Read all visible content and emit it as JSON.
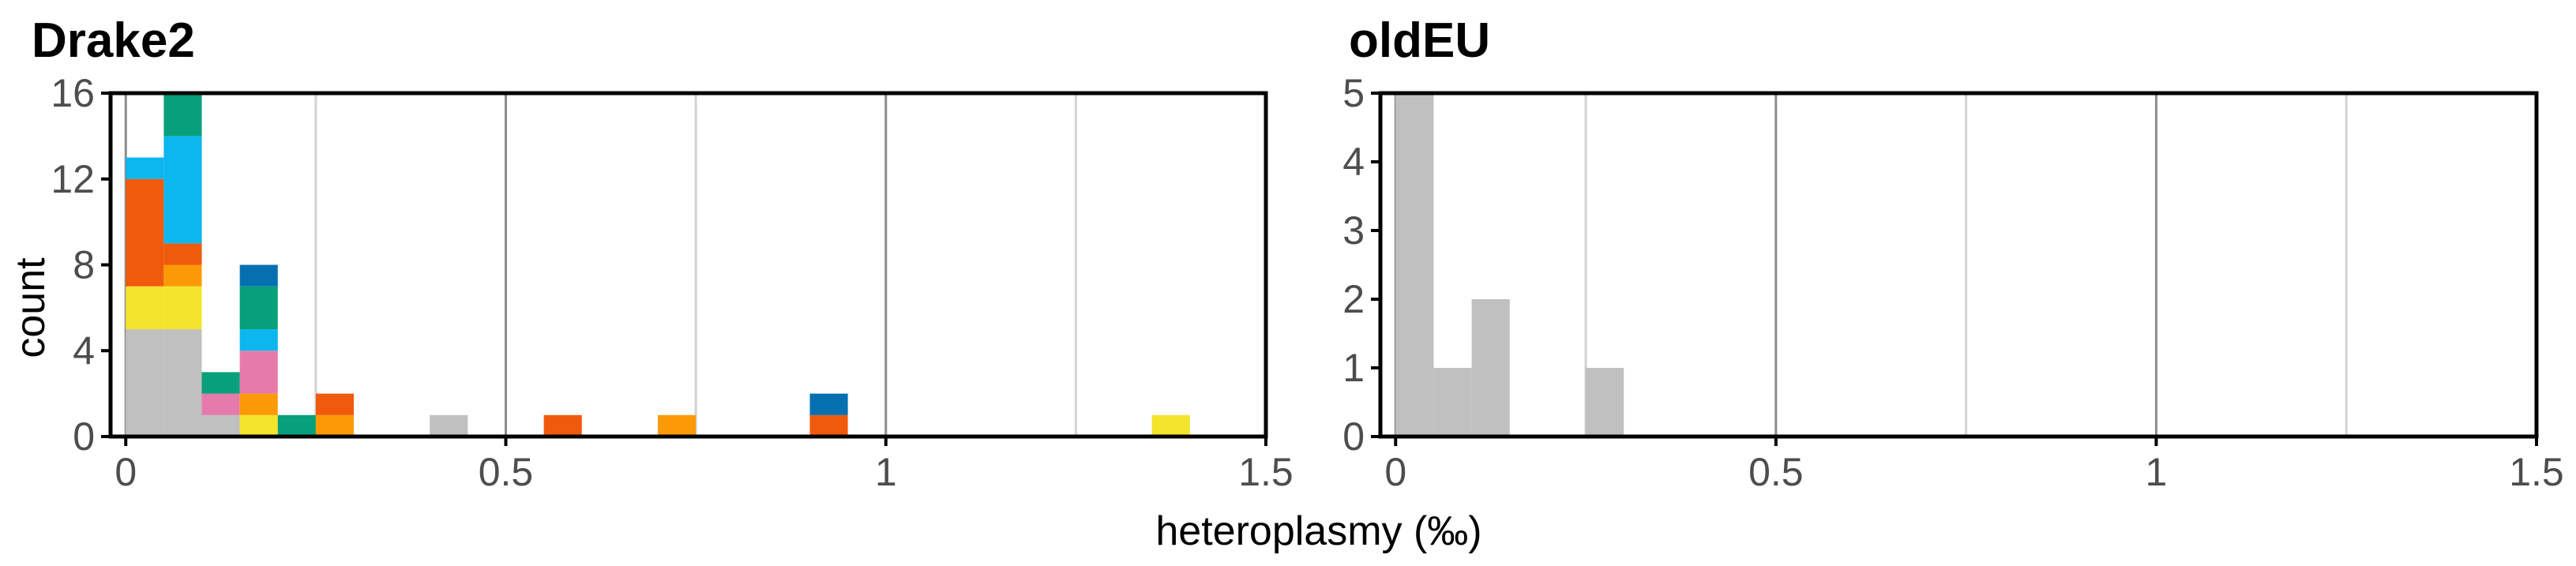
{
  "xlabel": "heteroplasmy (‰)",
  "ylabel": "count",
  "colors": {
    "grey": "#c0c0c0",
    "yellow": "#f4e42c",
    "orange": "#fb9a06",
    "vermillion": "#f05a0c",
    "pink": "#e67bab",
    "green": "#06a07a",
    "skyblue": "#0cb6ee",
    "blue": "#0570b0",
    "grid_major": "#8c8c8c",
    "grid_minor": "#d2d2d2"
  },
  "chart_data": [
    {
      "type": "bar",
      "stacked": true,
      "title": "Drake2",
      "xlabel": "heteroplasmy (‰)",
      "ylabel": "count",
      "xlim": [
        -0.02,
        1.5
      ],
      "ylim": [
        0,
        16
      ],
      "xticks": [
        "0",
        "0.5",
        "1",
        "1.5"
      ],
      "xtick_values": [
        0,
        0.5,
        1,
        1.5
      ],
      "yticks": [
        "0",
        "4",
        "8",
        "12",
        "16"
      ],
      "ytick_values": [
        0,
        4,
        8,
        12,
        16
      ],
      "bin_width": 0.05,
      "bins": [
        {
          "x": 0.0,
          "stack": [
            {
              "c": "grey",
              "n": 5
            },
            {
              "c": "yellow",
              "n": 2
            },
            {
              "c": "vermillion",
              "n": 5
            },
            {
              "c": "skyblue",
              "n": 1
            }
          ]
        },
        {
          "x": 0.05,
          "stack": [
            {
              "c": "grey",
              "n": 5
            },
            {
              "c": "yellow",
              "n": 2
            },
            {
              "c": "orange",
              "n": 1
            },
            {
              "c": "vermillion",
              "n": 1
            },
            {
              "c": "skyblue",
              "n": 5
            },
            {
              "c": "green",
              "n": 2
            }
          ]
        },
        {
          "x": 0.1,
          "stack": [
            {
              "c": "grey",
              "n": 1
            },
            {
              "c": "pink",
              "n": 1
            },
            {
              "c": "green",
              "n": 1
            }
          ]
        },
        {
          "x": 0.15,
          "stack": [
            {
              "c": "yellow",
              "n": 1
            },
            {
              "c": "orange",
              "n": 1
            },
            {
              "c": "pink",
              "n": 2
            },
            {
              "c": "skyblue",
              "n": 1
            },
            {
              "c": "green",
              "n": 2
            },
            {
              "c": "blue",
              "n": 1
            }
          ]
        },
        {
          "x": 0.2,
          "stack": [
            {
              "c": "green",
              "n": 1
            }
          ]
        },
        {
          "x": 0.25,
          "stack": [
            {
              "c": "orange",
              "n": 1
            },
            {
              "c": "vermillion",
              "n": 1
            }
          ]
        },
        {
          "x": 0.4,
          "stack": [
            {
              "c": "grey",
              "n": 1
            }
          ]
        },
        {
          "x": 0.55,
          "stack": [
            {
              "c": "vermillion",
              "n": 1
            }
          ]
        },
        {
          "x": 0.7,
          "stack": [
            {
              "c": "orange",
              "n": 1
            }
          ]
        },
        {
          "x": 0.9,
          "stack": [
            {
              "c": "vermillion",
              "n": 1
            },
            {
              "c": "blue",
              "n": 1
            }
          ]
        },
        {
          "x": 1.35,
          "stack": [
            {
              "c": "yellow",
              "n": 1
            }
          ]
        }
      ]
    },
    {
      "type": "bar",
      "stacked": true,
      "title": "oldEU",
      "xlabel": "heteroplasmy (‰)",
      "ylabel": "count",
      "xlim": [
        -0.02,
        1.5
      ],
      "ylim": [
        0,
        5
      ],
      "xticks": [
        "0",
        "0.5",
        "1",
        "1.5"
      ],
      "xtick_values": [
        0,
        0.5,
        1,
        1.5
      ],
      "yticks": [
        "0",
        "1",
        "2",
        "3",
        "4",
        "5"
      ],
      "ytick_values": [
        0,
        1,
        2,
        3,
        4,
        5
      ],
      "bin_width": 0.05,
      "bins": [
        {
          "x": 0.0,
          "stack": [
            {
              "c": "grey",
              "n": 5
            }
          ]
        },
        {
          "x": 0.05,
          "stack": [
            {
              "c": "grey",
              "n": 1
            }
          ]
        },
        {
          "x": 0.1,
          "stack": [
            {
              "c": "grey",
              "n": 2
            }
          ]
        },
        {
          "x": 0.25,
          "stack": [
            {
              "c": "grey",
              "n": 1
            }
          ]
        }
      ]
    }
  ]
}
